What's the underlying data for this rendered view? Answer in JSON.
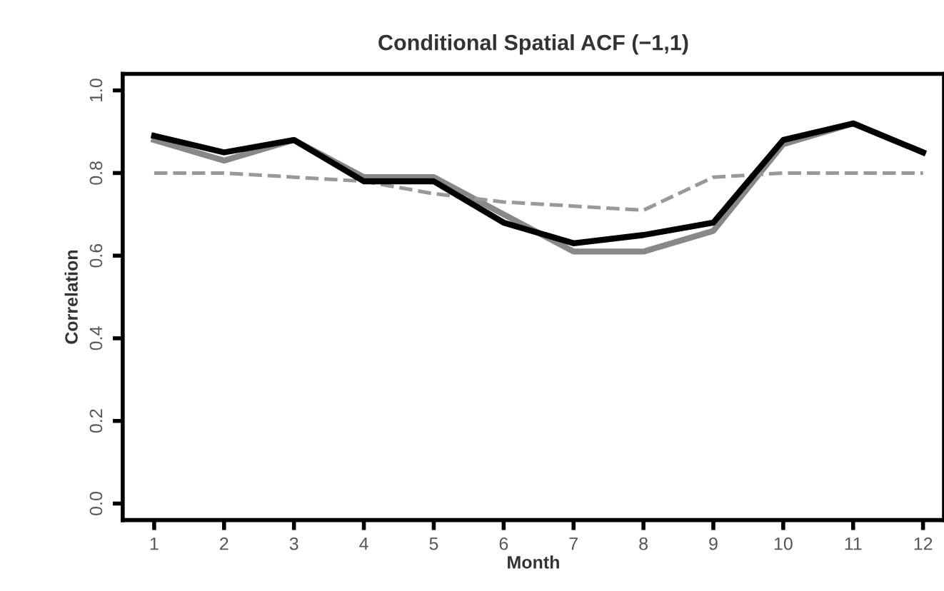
{
  "chart_data": {
    "type": "line",
    "title": "Conditional Spatial ACF (−1,1)",
    "xlabel": "Month",
    "ylabel": "Correlation",
    "x": [
      1,
      2,
      3,
      4,
      5,
      6,
      7,
      8,
      9,
      10,
      11,
      12
    ],
    "series": [
      {
        "color": "#888888",
        "line_style": "solid",
        "values": [
          0.88,
          0.83,
          0.88,
          0.79,
          0.79,
          0.7,
          0.61,
          0.61,
          0.66,
          0.87,
          0.92,
          0.85
        ]
      },
      {
        "color": "#999999",
        "line_style": "dashed",
        "values": [
          0.8,
          0.8,
          0.79,
          0.78,
          0.75,
          0.73,
          0.72,
          0.71,
          0.79,
          0.8,
          0.8,
          0.8
        ]
      },
      {
        "color": "#000000",
        "line_style": "solid",
        "values": [
          0.89,
          0.85,
          0.88,
          0.78,
          0.78,
          0.68,
          0.63,
          0.65,
          0.68,
          0.88,
          0.92,
          0.85
        ]
      }
    ],
    "xlim": [
      0.55,
      12.3
    ],
    "ylim": [
      -0.04,
      1.04
    ],
    "xticks": [
      1,
      2,
      3,
      4,
      5,
      6,
      7,
      8,
      9,
      10,
      11,
      12
    ],
    "yticks": [
      {
        "value": 0.0,
        "label": "0.0"
      },
      {
        "value": 0.2,
        "label": "0.2"
      },
      {
        "value": 0.4,
        "label": "0.4"
      },
      {
        "value": 0.6,
        "label": "0.6"
      },
      {
        "value": 0.8,
        "label": "0.8"
      },
      {
        "value": 1.0,
        "label": "1.0"
      }
    ],
    "grid": false,
    "legend": false,
    "marker": "none"
  }
}
